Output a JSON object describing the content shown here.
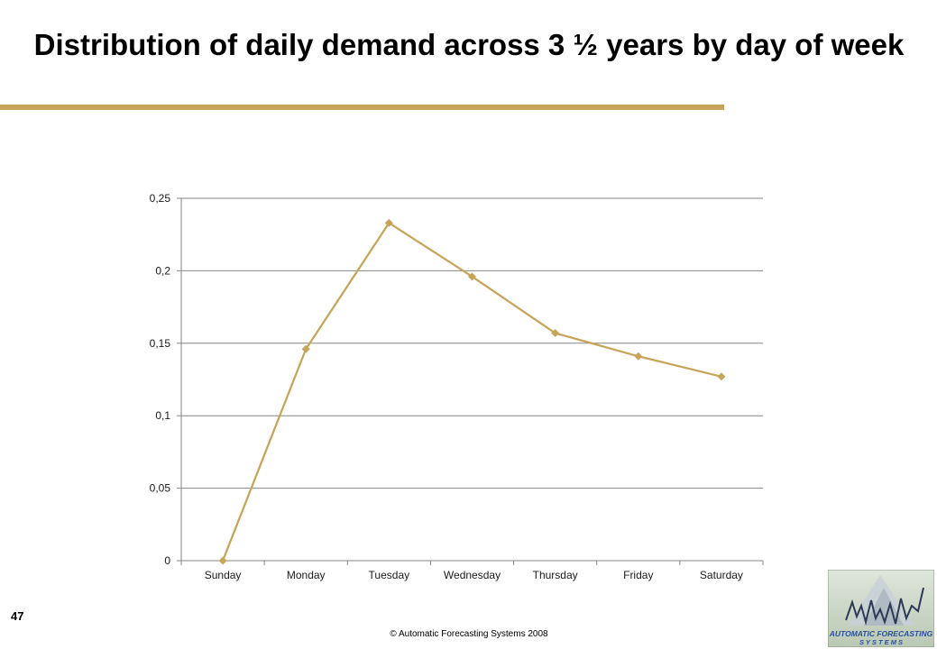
{
  "slide": {
    "title": "Distribution of daily demand across 3 ½ years by day of week",
    "number": "47",
    "copyright": "© Automatic Forecasting Systems 2008",
    "accent_color": "#c8a35a",
    "logo": {
      "line1": "AUTOMATIC FORECASTING",
      "line2": "S Y S T E M S"
    }
  },
  "chart_data": {
    "type": "line",
    "categories": [
      "Sunday",
      "Monday",
      "Tuesday",
      "Wednesday",
      "Thursday",
      "Friday",
      "Saturday"
    ],
    "series": [
      {
        "values": [
          0,
          0.146,
          0.233,
          0.196,
          0.157,
          0.141,
          0.127
        ],
        "color": "#c8a35a",
        "marker": "diamond"
      }
    ],
    "ylim": [
      0,
      0.25
    ],
    "yticks": [
      0,
      0.05,
      0.1,
      0.15,
      0.2,
      0.25
    ],
    "ytick_labels": [
      "0",
      "0,05",
      "0,1",
      "0,15",
      "0,2",
      "0,25"
    ],
    "grid": true,
    "legend": "none"
  }
}
